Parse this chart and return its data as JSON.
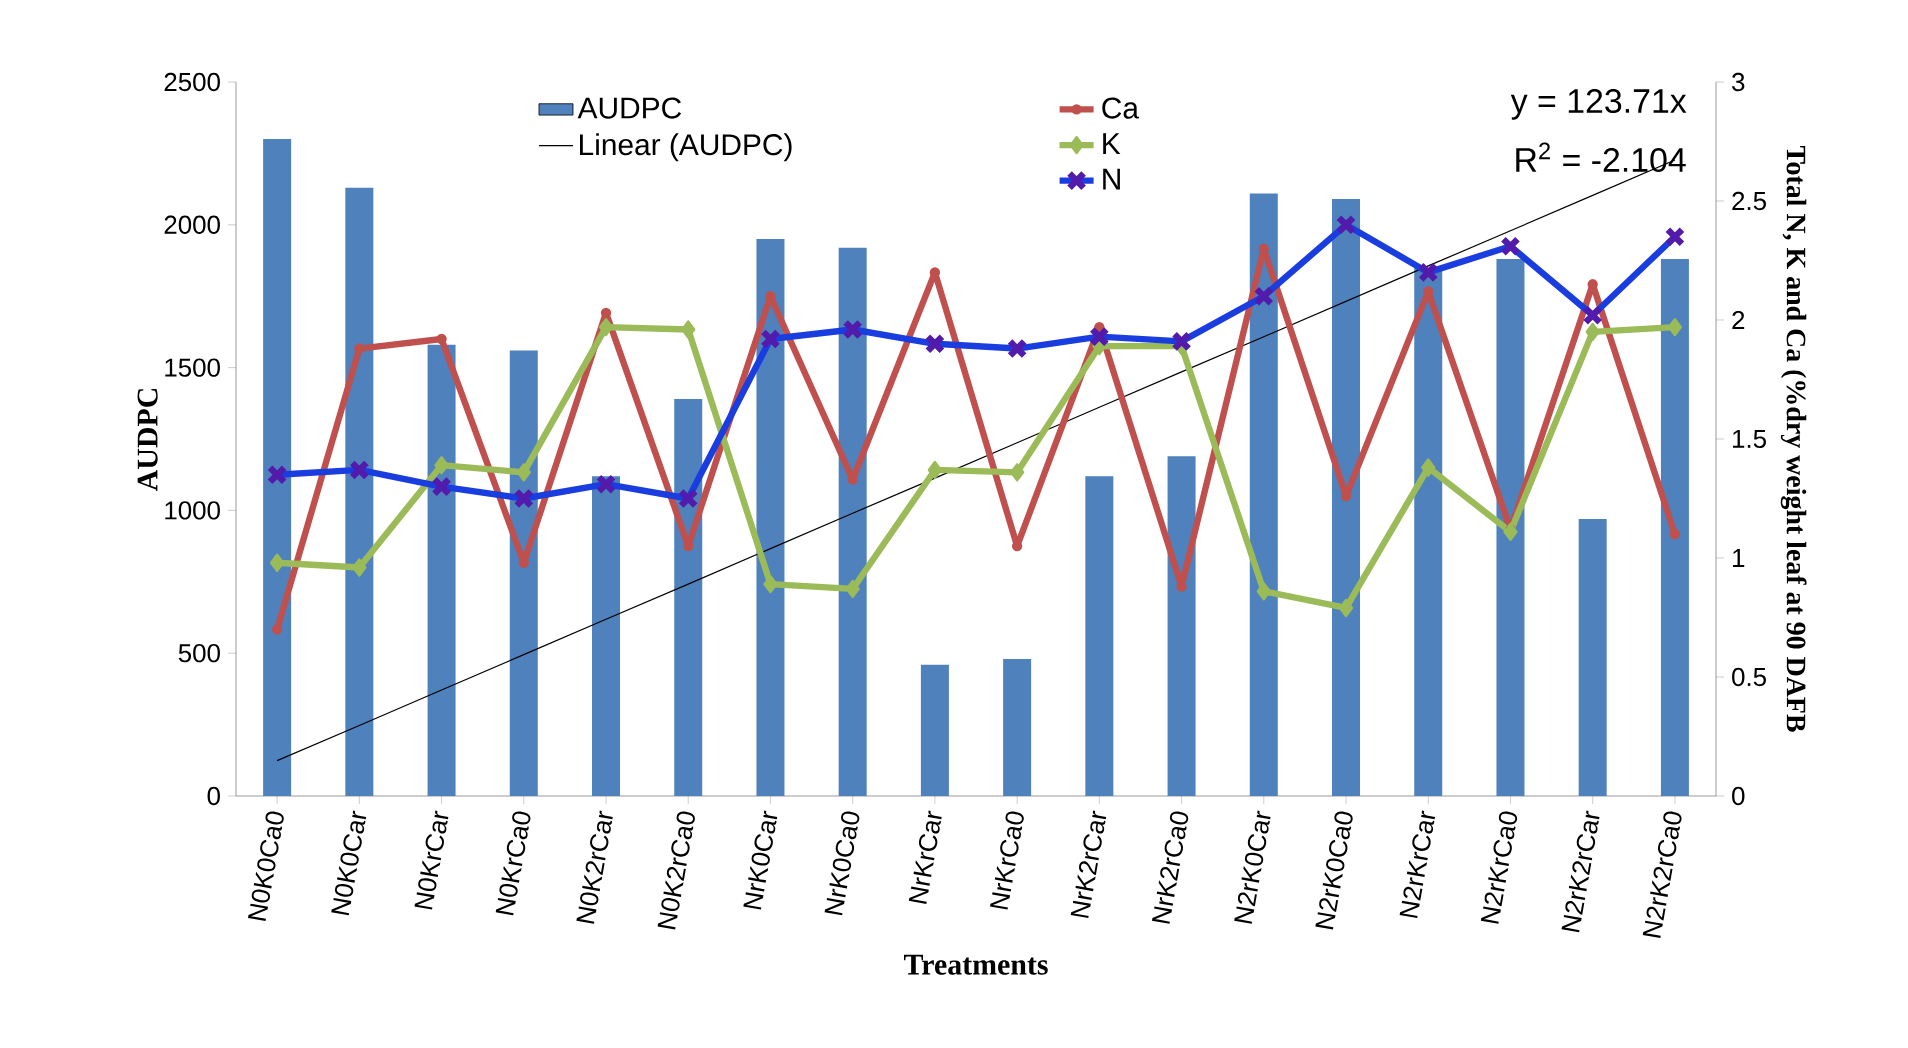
{
  "chart_data": {
    "type": "bar",
    "xlabel": "Treatments",
    "ylabel": "AUDPC",
    "y2label": "Total N, K and Ca (%dry weight leaf at 90 DAFB",
    "categories": [
      "N0K0Ca0",
      "N0K0Car",
      "N0KrCar",
      "N0KrCa0",
      "N0K2rCar",
      "N0K2rCa0",
      "NrK0Car",
      "NrK0Ca0",
      "NrKrCar",
      "NrKrCa0",
      "NrK2rCar",
      "NrK2rCa0",
      "N2rK0Car",
      "N2rK0Ca0",
      "N2rKrCar",
      "N2rKrCa0",
      "N2rK2rCar",
      "N2rK2rCa0"
    ],
    "series": [
      {
        "name": "AUDPC",
        "color": "#4f81bd",
        "values": [
          2300,
          2130,
          1580,
          1560,
          1120,
          1390,
          1950,
          1920,
          460,
          480,
          1120,
          1190,
          2110,
          2090,
          1850,
          1880,
          970,
          1880
        ]
      },
      {
        "name": "Ca",
        "type": "line",
        "axis": "y2",
        "color": "#c0504d",
        "marker": "circle",
        "values": [
          0.7,
          1.88,
          1.92,
          0.98,
          2.03,
          1.05,
          2.1,
          1.33,
          2.2,
          1.05,
          1.97,
          0.88,
          2.3,
          1.26,
          2.12,
          1.12,
          2.15,
          1.1
        ]
      },
      {
        "name": "K",
        "type": "line",
        "axis": "y2",
        "color": "#9bbb59",
        "marker": "diamond",
        "values": [
          0.98,
          0.96,
          1.39,
          1.36,
          1.97,
          1.96,
          0.89,
          0.87,
          1.37,
          1.36,
          1.89,
          1.89,
          0.86,
          0.79,
          1.38,
          1.11,
          1.95,
          1.97
        ]
      },
      {
        "name": "N",
        "type": "line",
        "axis": "y2",
        "color": "#1a3de0",
        "marker": "cross",
        "values": [
          1.35,
          1.37,
          1.3,
          1.25,
          1.31,
          1.25,
          1.92,
          1.96,
          1.9,
          1.88,
          1.93,
          1.91,
          2.1,
          2.4,
          2.2,
          2.31,
          2.02,
          2.35
        ]
      },
      {
        "name": "Linear (AUDPC)",
        "type": "line",
        "color": "#000000",
        "marker": "none",
        "values": [
          124,
          247,
          371,
          495,
          619,
          742,
          866,
          990,
          1113,
          1237,
          1361,
          1485,
          1608,
          1732,
          1856,
          1979,
          2103,
          2227
        ]
      }
    ],
    "ylim": [
      0,
      2500
    ],
    "yticks": [
      0,
      500,
      1000,
      1500,
      2000,
      2500
    ],
    "y2lim": [
      0,
      3
    ],
    "y2ticks": [
      0,
      0.5,
      1,
      1.5,
      2,
      2.5,
      3
    ],
    "legend": "top",
    "grid": false,
    "annotations": [
      "y = 123.71x",
      "R$^{2}$ = -2.104"
    ]
  }
}
